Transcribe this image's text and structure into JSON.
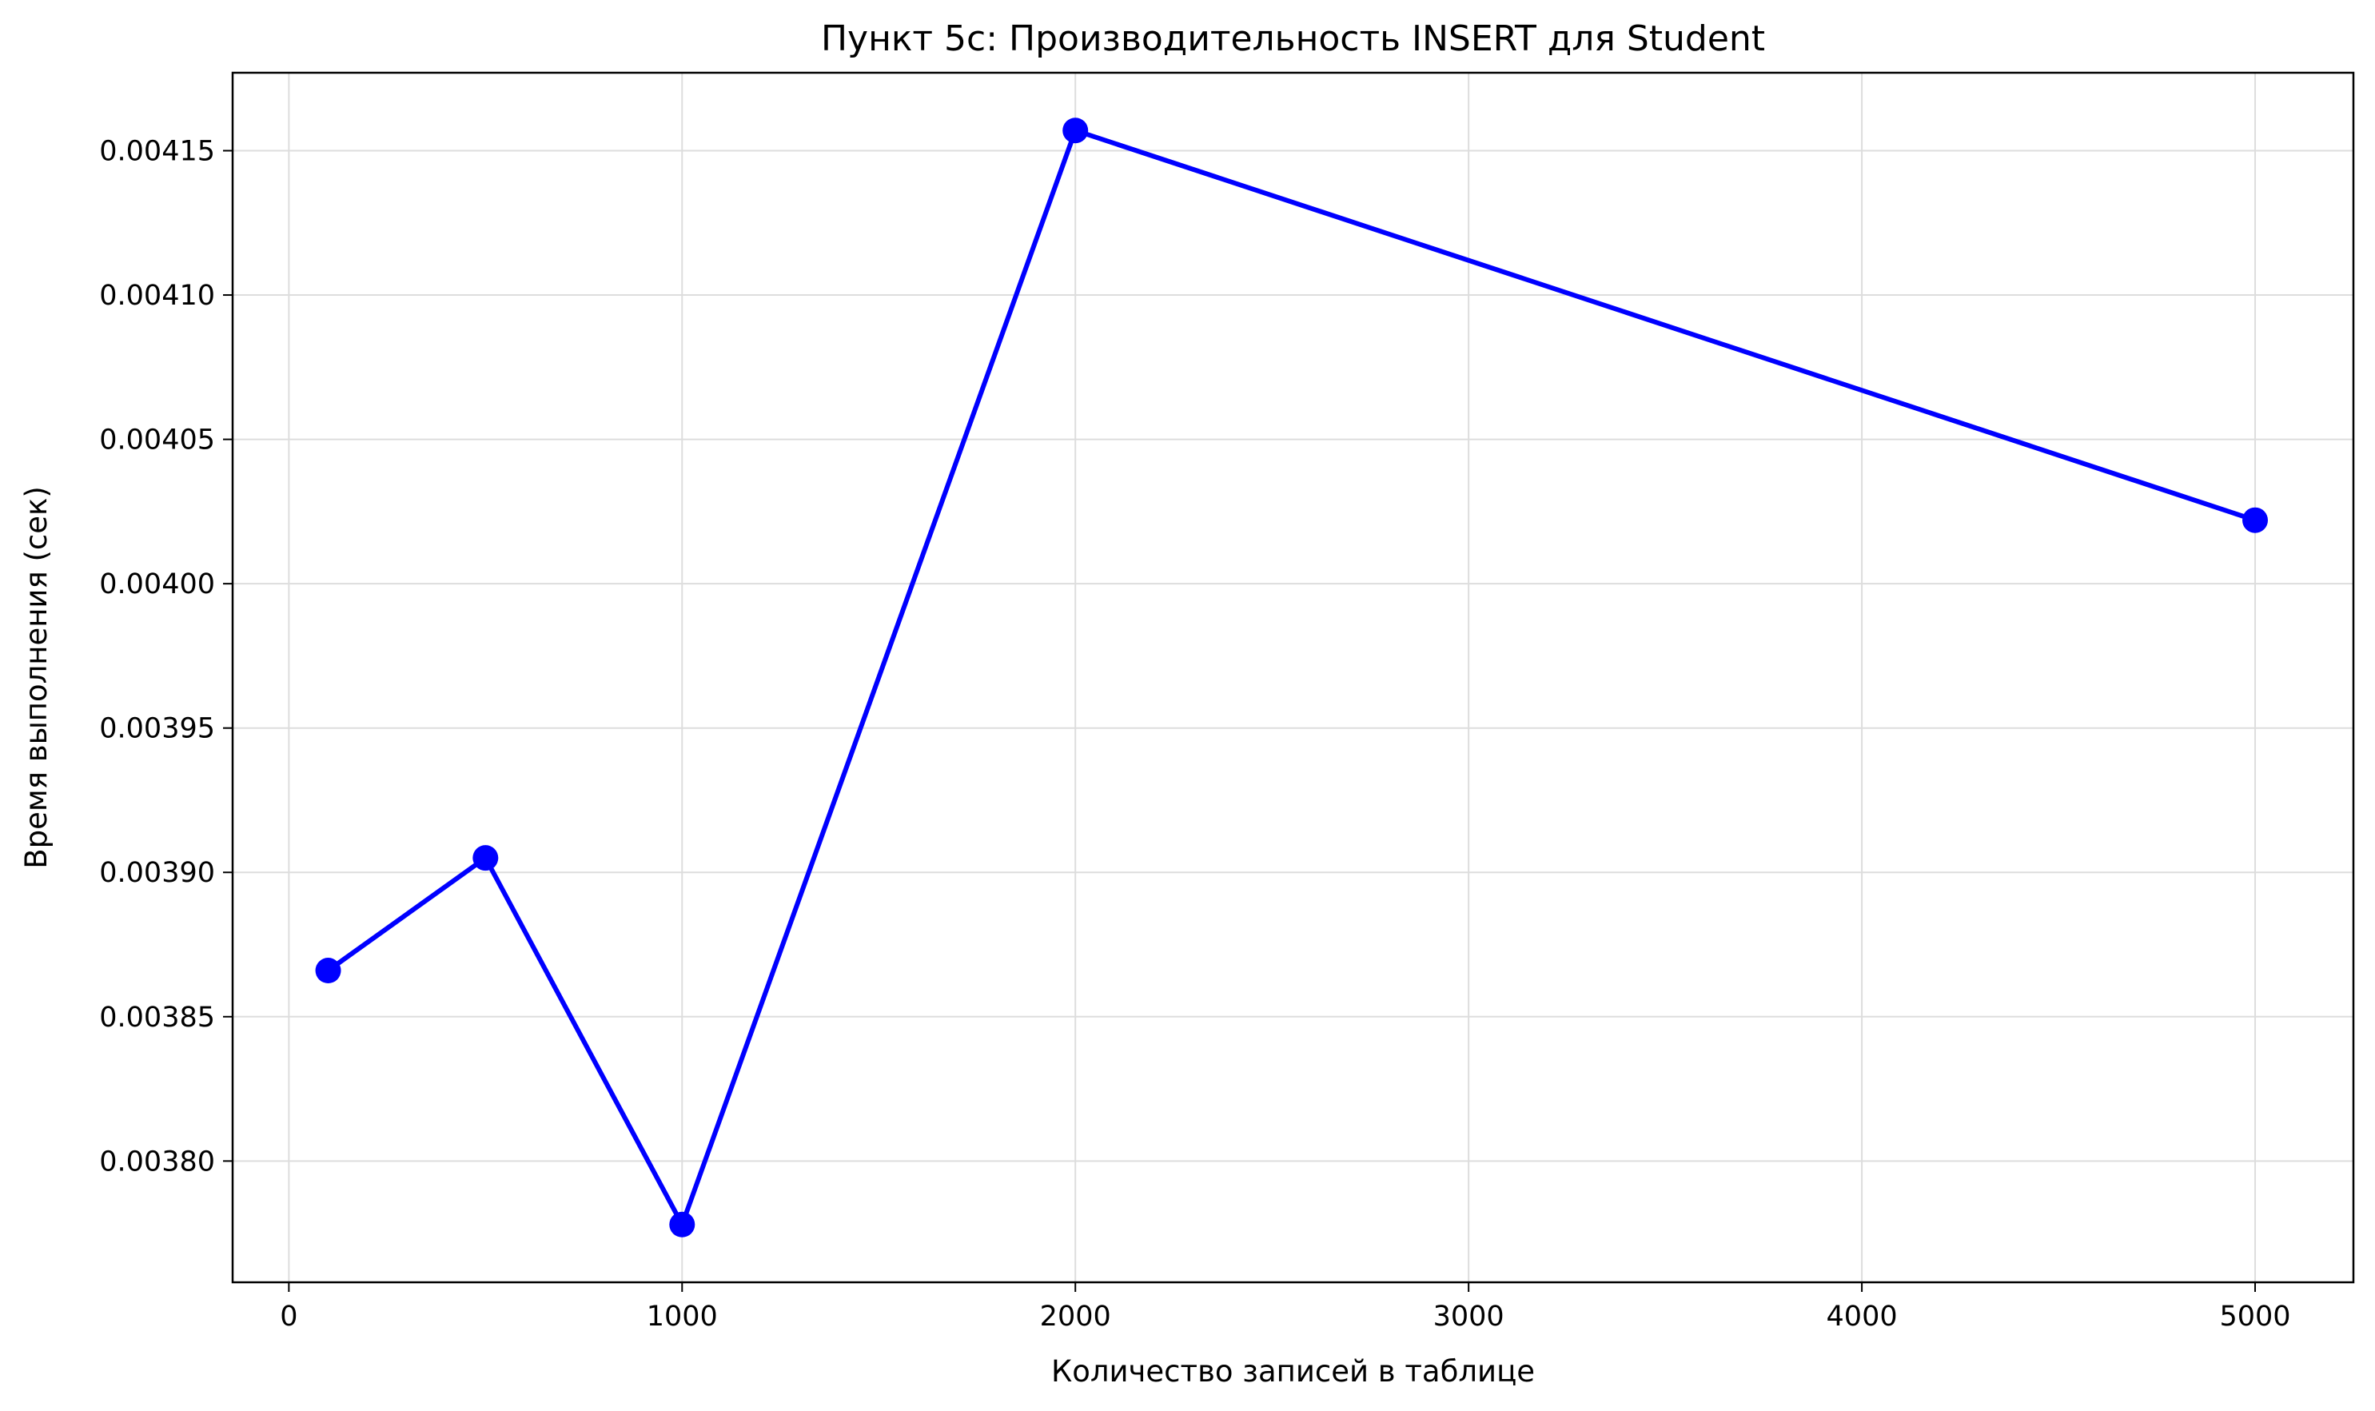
{
  "chart_data": {
    "type": "line",
    "title": "Пункт 5c: Производительность INSERT для Student",
    "xlabel": "Количество записей в таблице",
    "ylabel": "Время выполнения (сек)",
    "x": [
      100,
      500,
      1000,
      2000,
      5000
    ],
    "series": [
      {
        "values": [
          0.003866,
          0.003905,
          0.003778,
          0.004157,
          0.004022
        ],
        "color": "#0000ff",
        "marker": "circle"
      }
    ],
    "xlim": [
      -143,
      5250
    ],
    "ylim": [
      0.003758,
      0.004177
    ],
    "xticks": [
      0,
      1000,
      2000,
      3000,
      4000,
      5000
    ],
    "xtick_labels": [
      "0",
      "1000",
      "2000",
      "3000",
      "4000",
      "5000"
    ],
    "yticks": [
      0.0038,
      0.00385,
      0.0039,
      0.00395,
      0.004,
      0.00405,
      0.0041,
      0.00415
    ],
    "ytick_labels": [
      "0.00380",
      "0.00385",
      "0.00390",
      "0.00395",
      "0.00400",
      "0.00405",
      "0.00410",
      "0.00415"
    ],
    "grid": true,
    "legend": "none"
  }
}
